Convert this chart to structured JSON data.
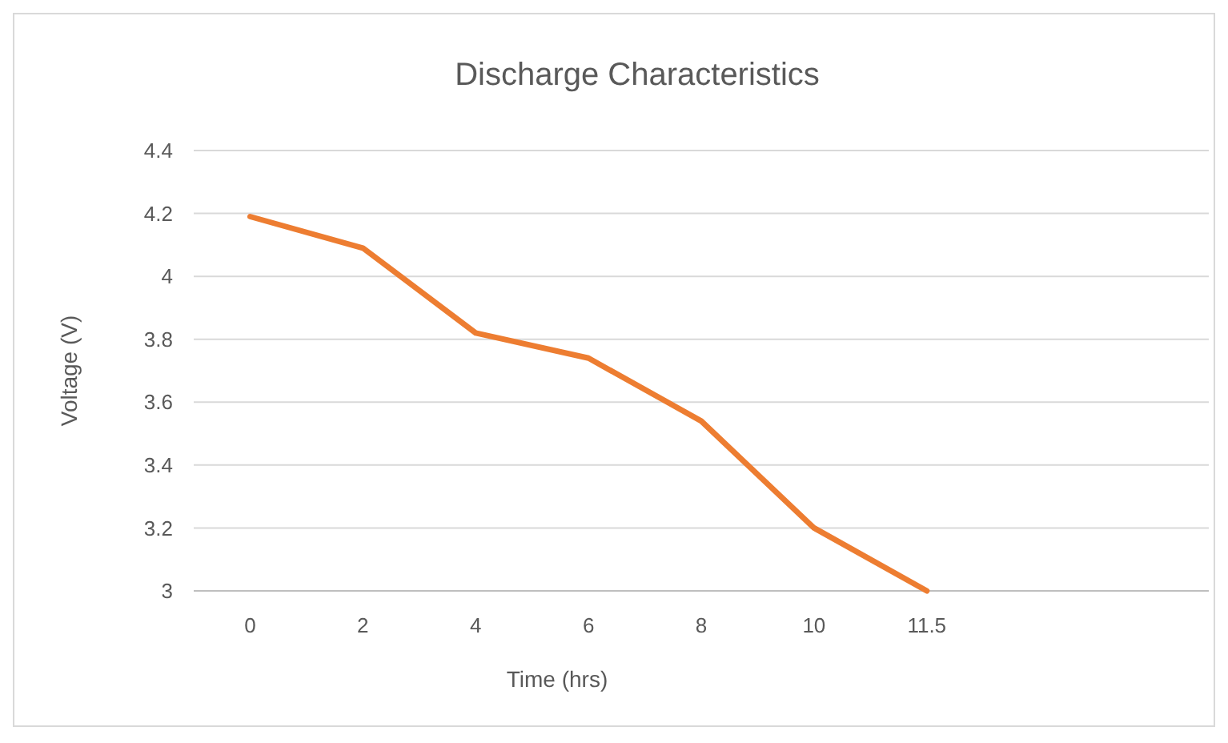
{
  "chart_data": {
    "type": "line",
    "title": "Discharge Characteristics",
    "xlabel": "Time (hrs)",
    "ylabel": "Voltage (V)",
    "categories": [
      "0",
      "2",
      "4",
      "6",
      "8",
      "10",
      "11.5",
      null,
      null
    ],
    "series": [
      {
        "color": "#ed7d31",
        "values": [
          4.19,
          4.09,
          3.82,
          3.74,
          3.54,
          3.2,
          3.0,
          null,
          null
        ]
      }
    ],
    "ylim": [
      3,
      4.4
    ],
    "yticks": [
      3,
      {
        "value": 3.2,
        "label": "3.2"
      },
      {
        "value": 3.4,
        "label": "3.4"
      },
      {
        "value": 3.6,
        "label": "3.6"
      },
      {
        "value": 3.8,
        "label": "3.8"
      },
      4,
      {
        "value": 4.2,
        "label": "4.2"
      },
      {
        "value": 4.4,
        "label": "4.4"
      }
    ],
    "grid": "y",
    "marker": "none",
    "line_style": "solid"
  }
}
